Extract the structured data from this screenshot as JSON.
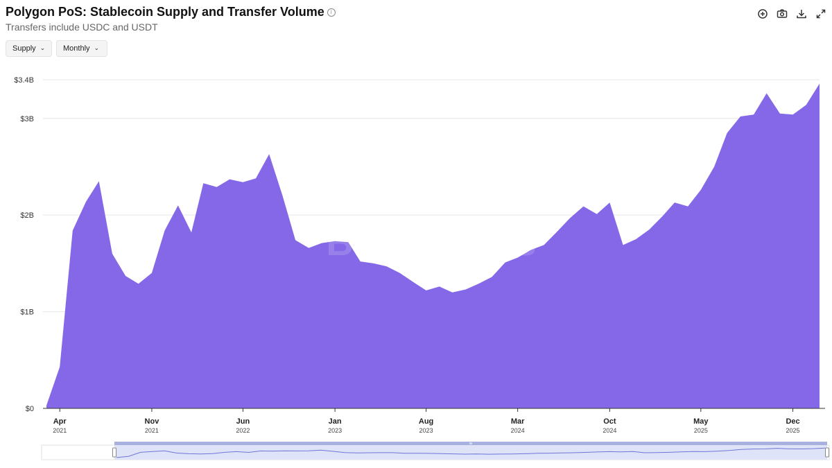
{
  "header": {
    "title": "Polygon PoS: Stablecoin Supply and Transfer Volume",
    "subtitle": "Transfers include USDC and USDT"
  },
  "controls": {
    "metric_label": "Supply",
    "period_label": "Monthly"
  },
  "toolbar": {
    "icons": [
      "plus-circle-icon",
      "camera-icon",
      "download-icon",
      "expand-icon"
    ]
  },
  "watermark": "Blockworks",
  "colors": {
    "area": "#8568e8",
    "navigator_fill": "#dfe3f7",
    "navigator_line": "#6f76d9",
    "navigator_handle_bar": "#a7b0df"
  },
  "chart_data": {
    "type": "area",
    "title": "Polygon PoS: Stablecoin Supply and Transfer Volume",
    "subtitle": "Transfers include USDC and USDT",
    "xlabel": "",
    "ylabel": "",
    "series": [
      {
        "name": "Supply",
        "x": [
          "2021-03",
          "2021-04",
          "2021-05",
          "2021-06",
          "2021-07",
          "2021-08",
          "2021-09",
          "2021-10",
          "2021-11",
          "2021-12",
          "2022-01",
          "2022-02",
          "2022-03",
          "2022-04",
          "2022-05",
          "2022-06",
          "2022-07",
          "2022-08",
          "2022-09",
          "2022-10",
          "2022-11",
          "2022-12",
          "2023-01",
          "2023-02",
          "2023-03",
          "2023-04",
          "2023-05",
          "2023-06",
          "2023-07",
          "2023-08",
          "2023-09",
          "2023-10",
          "2023-11",
          "2023-12",
          "2024-01",
          "2024-02",
          "2024-03",
          "2024-04",
          "2024-05",
          "2024-06",
          "2024-07",
          "2024-08",
          "2024-09",
          "2024-10",
          "2024-11",
          "2024-12",
          "2025-01",
          "2025-02",
          "2025-03",
          "2025-04",
          "2025-05",
          "2025-06",
          "2025-07",
          "2025-08",
          "2025-09",
          "2025-10",
          "2025-11",
          "2025-12",
          "2026-01",
          "2026-02"
        ],
        "values": [
          0.03,
          0.43,
          1.84,
          2.14,
          2.35,
          1.6,
          1.37,
          1.29,
          1.4,
          1.84,
          2.1,
          1.82,
          2.33,
          2.29,
          2.37,
          2.34,
          2.38,
          2.63,
          2.2,
          1.74,
          1.66,
          1.71,
          1.73,
          1.72,
          1.52,
          1.5,
          1.47,
          1.4,
          1.31,
          1.22,
          1.26,
          1.2,
          1.23,
          1.29,
          1.36,
          1.51,
          1.56,
          1.64,
          1.69,
          1.83,
          1.97,
          2.09,
          2.01,
          2.13,
          1.69,
          1.75,
          1.85,
          1.99,
          2.13,
          2.09,
          2.26,
          2.5,
          2.85,
          3.02,
          3.04,
          3.26,
          3.05,
          3.04,
          3.14,
          3.36
        ]
      }
    ],
    "y_unit": "USD billions",
    "ylim": [
      0,
      3.4
    ],
    "yticks": [
      {
        "value": 0,
        "label": "$0"
      },
      {
        "value": 1,
        "label": "$1B"
      },
      {
        "value": 2,
        "label": "$2B"
      },
      {
        "value": 3,
        "label": "$3B"
      },
      {
        "value": 3.4,
        "label": "$3.4B"
      }
    ],
    "xticks": [
      {
        "date": "2021-04",
        "month": "Apr",
        "year": "2021"
      },
      {
        "date": "2021-11",
        "month": "Nov",
        "year": "2021"
      },
      {
        "date": "2022-06",
        "month": "Jun",
        "year": "2022"
      },
      {
        "date": "2023-01",
        "month": "Jan",
        "year": "2023"
      },
      {
        "date": "2023-08",
        "month": "Aug",
        "year": "2023"
      },
      {
        "date": "2024-03",
        "month": "Mar",
        "year": "2024"
      },
      {
        "date": "2024-10",
        "month": "Oct",
        "year": "2024"
      },
      {
        "date": "2025-05",
        "month": "May",
        "year": "2025"
      },
      {
        "date": "2025-12",
        "month": "Dec",
        "year": "2025"
      }
    ],
    "grid": true,
    "legend": "none"
  }
}
